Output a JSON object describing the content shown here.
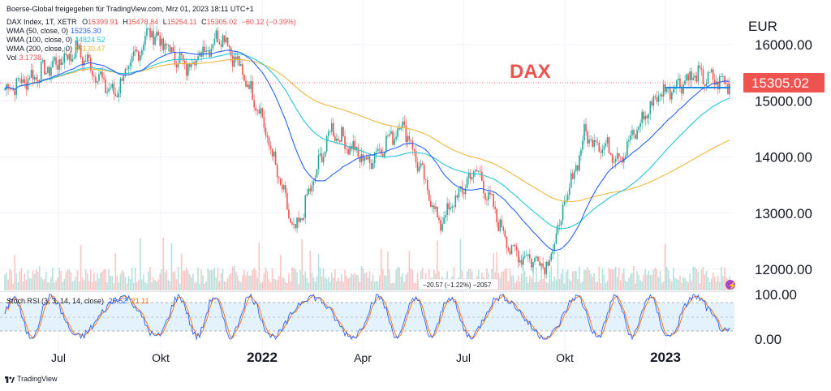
{
  "header": {
    "publisher": "Boerse-Global freigegeben für TradingView.com, Mrz 01, 2023 18:11 UTC+1"
  },
  "legend": {
    "symbol": "DAX Index, 1T, XETR",
    "ohlc": {
      "o_label": "O",
      "o": "15399.91",
      "h_label": "H",
      "h": "15478.84",
      "l_label": "L",
      "l": "15254.11",
      "c_label": "C",
      "c": "15305.02",
      "chg": "−60.12 (−0.39%)"
    },
    "wma50": {
      "label": "WMA (50, close, 0)",
      "value": "15236.30",
      "color": "#2962ff"
    },
    "wma100": {
      "label": "WMA (100, close, 0)",
      "value": "14824.52",
      "color": "#26c6da"
    },
    "wma200": {
      "label": "WMA (200, close, 0)",
      "value": "14130.47",
      "color": "#f0b73f"
    },
    "vol": {
      "label": "Vol",
      "value": "3.1738"
    }
  },
  "annotation": {
    "text": "DAX",
    "color": "#ef5350"
  },
  "price_axis": {
    "currency": "EUR",
    "ticks": [
      "16000.00",
      "15000.00",
      "14000.00",
      "13000.00",
      "12000.00"
    ],
    "last_price": "15305.02",
    "last_price_color": "#ef5350"
  },
  "rsi": {
    "label": "Stoch RSI (3, 3, 14, 14, close)",
    "k_value": "25.52",
    "d_value": "21.11",
    "k_color": "#2962ff",
    "d_color": "#ff6d00",
    "ticks": [
      "100.00",
      "0.00"
    ]
  },
  "measure_label": "−20.57 (−1.22%) −2057",
  "time_axis": [
    "Jul",
    "Okt",
    "2022",
    "Apr",
    "Jul",
    "Okt",
    "2023"
  ],
  "footer": {
    "brand": "TradingView"
  },
  "colors": {
    "up": "#26a69a",
    "down": "#ef5350",
    "grid": "#f0f3fa",
    "band": "#e3f2fd"
  },
  "chart_data": {
    "type": "candlestick",
    "title": "DAX",
    "currency": "EUR",
    "y_range": [
      11700,
      16500
    ],
    "x_ticks": [
      "Jul",
      "Okt",
      "2022",
      "Apr",
      "Jul",
      "Okt",
      "2023"
    ],
    "key_points": [
      {
        "t": "2021-05",
        "close": 15200
      },
      {
        "t": "2021-07",
        "close": 15500
      },
      {
        "t": "2021-08",
        "close": 15900
      },
      {
        "t": "2021-10",
        "close": 15100
      },
      {
        "t": "2021-11",
        "close": 16250
      },
      {
        "t": "2021-12",
        "close": 15600
      },
      {
        "t": "2022-01",
        "close": 16200
      },
      {
        "t": "2022-02",
        "close": 14900
      },
      {
        "t": "2022-03",
        "close": 12600
      },
      {
        "t": "2022-04",
        "close": 14500
      },
      {
        "t": "2022-05",
        "close": 13900
      },
      {
        "t": "2022-06",
        "close": 14600
      },
      {
        "t": "2022-07",
        "close": 12800
      },
      {
        "t": "2022-08",
        "close": 13800
      },
      {
        "t": "2022-09",
        "close": 12300
      },
      {
        "t": "2022-10",
        "close": 12100
      },
      {
        "t": "2022-11",
        "close": 14400
      },
      {
        "t": "2022-12",
        "close": 14000
      },
      {
        "t": "2023-01",
        "close": 15100
      },
      {
        "t": "2023-02",
        "close": 15450
      },
      {
        "t": "2023-03-01",
        "open": 15399.91,
        "high": 15478.84,
        "low": 15254.11,
        "close": 15305.02
      }
    ],
    "series": [
      {
        "name": "WMA (50, close, 0)",
        "last": 15236.3
      },
      {
        "name": "WMA (100, close, 0)",
        "last": 14824.52
      },
      {
        "name": "WMA (200, close, 0)",
        "last": 14130.47
      }
    ],
    "horizontal_line": 15200,
    "stoch_rsi": {
      "k": 25.52,
      "d": 21.11,
      "range": [
        0,
        100
      ],
      "band": [
        20,
        80
      ]
    }
  }
}
